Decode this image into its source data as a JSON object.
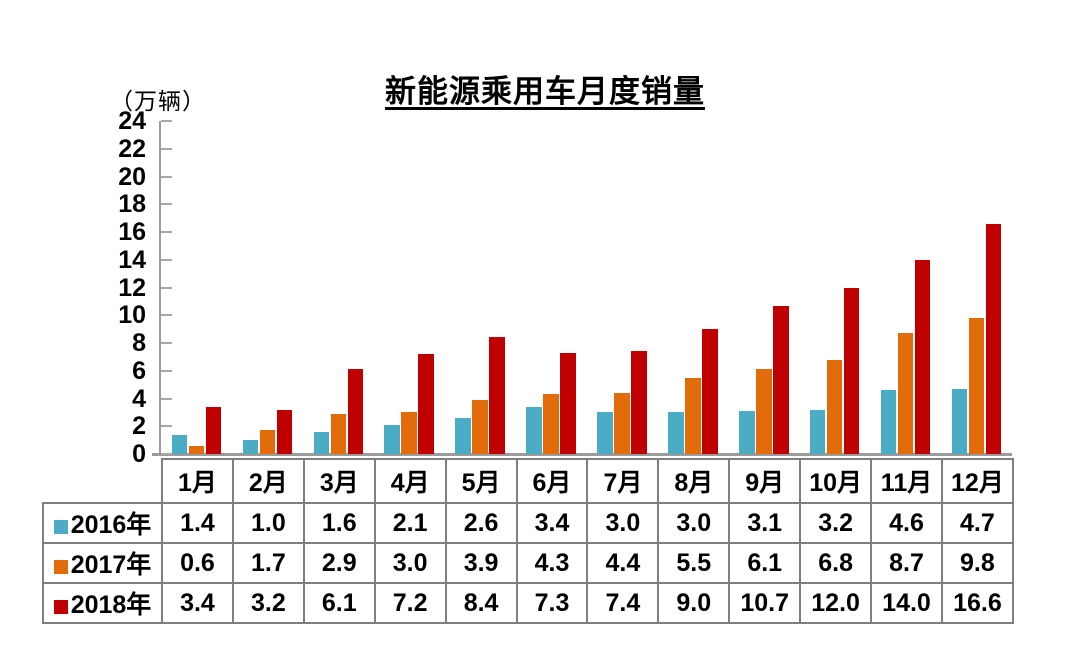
{
  "chart_data": {
    "type": "bar",
    "title": "新能源乘用车月度销量",
    "ylabel": "（万辆）",
    "xlabel": "",
    "categories": [
      "1月",
      "2月",
      "3月",
      "4月",
      "5月",
      "6月",
      "7月",
      "8月",
      "9月",
      "10月",
      "11月",
      "12月"
    ],
    "series": [
      {
        "name": "2016年",
        "color": "#4BACC6",
        "values": [
          1.4,
          1.0,
          1.6,
          2.1,
          2.6,
          3.4,
          3.0,
          3.0,
          3.1,
          3.2,
          4.6,
          4.7
        ]
      },
      {
        "name": "2017年",
        "color": "#E36C0A",
        "values": [
          0.6,
          1.7,
          2.9,
          3.0,
          3.9,
          4.3,
          4.4,
          5.5,
          6.1,
          6.8,
          8.7,
          9.8
        ]
      },
      {
        "name": "2018年",
        "color": "#C00000",
        "values": [
          3.4,
          3.2,
          6.1,
          7.2,
          8.4,
          7.3,
          7.4,
          9.0,
          10.7,
          12.0,
          14.0,
          16.6
        ]
      }
    ],
    "ylim": [
      0,
      24
    ],
    "ytick_step": 2,
    "value_decimals": 1,
    "grid": false,
    "legend_position": "table-left-column",
    "colors": {
      "axis": "#9c9c9c",
      "table_border": "#7f7f7f",
      "text": "#000000",
      "background": "#ffffff"
    }
  }
}
